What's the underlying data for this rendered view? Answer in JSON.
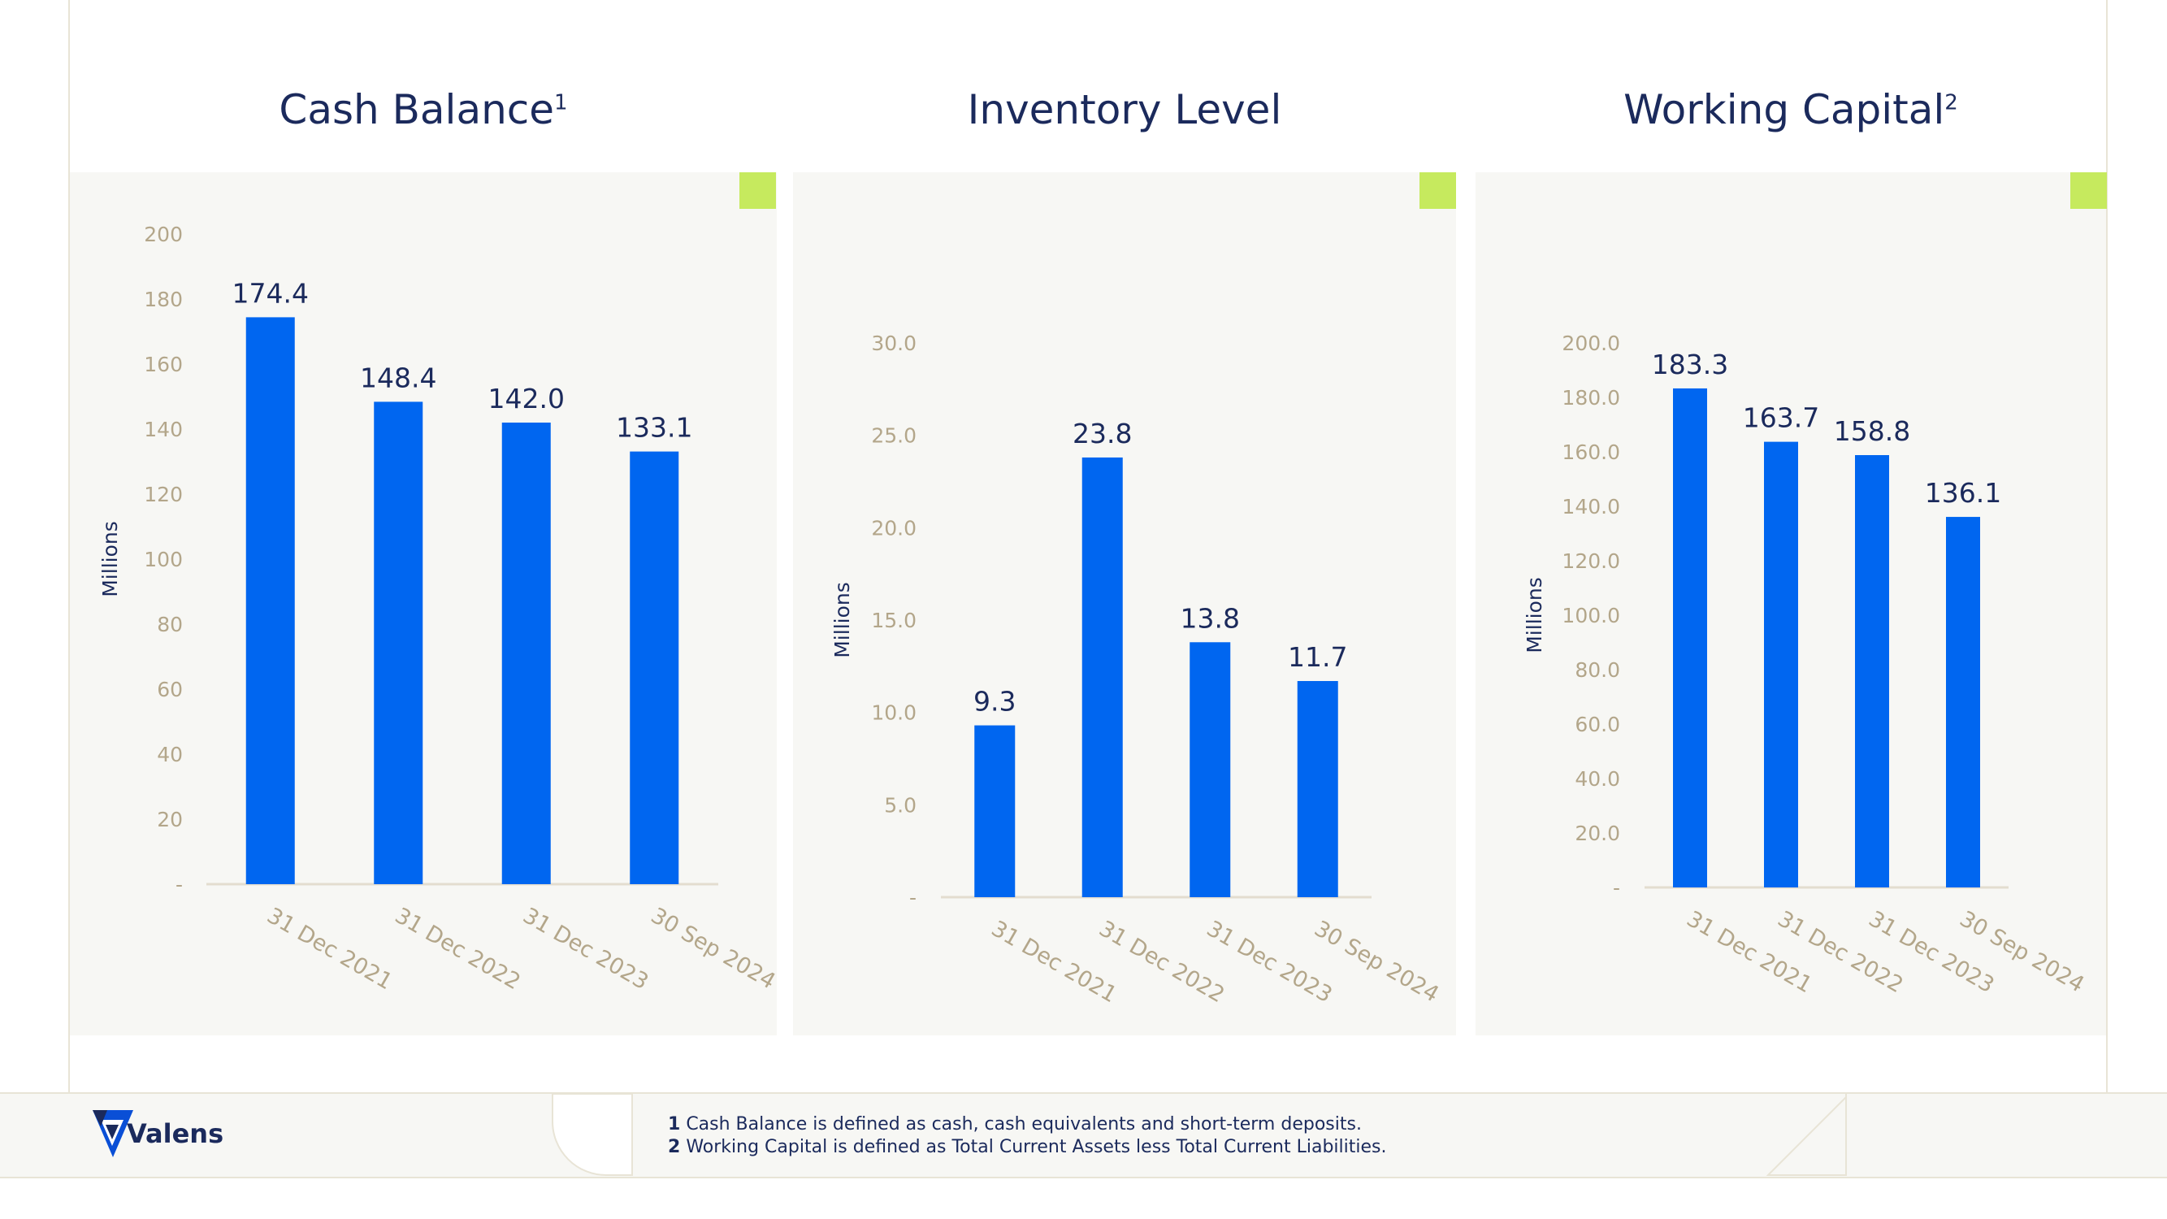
{
  "colors": {
    "bar": "#0066f0",
    "title": "#1b2a5c",
    "tick": "#b3a68a",
    "accent": "#c6ea5e",
    "panel": "#f7f7f4"
  },
  "panels": [
    {
      "title": "Cash Balance",
      "superscript": "1"
    },
    {
      "title": "Inventory Level",
      "superscript": ""
    },
    {
      "title": "Working Capital",
      "superscript": "2"
    }
  ],
  "chart_data": [
    {
      "type": "bar",
      "title": "Cash Balance",
      "ylabel": "Millions",
      "categories": [
        "31 Dec 2021",
        "31 Dec 2022",
        "31 Dec 2023",
        "30 Sep 2024"
      ],
      "values": [
        174.4,
        148.4,
        142.0,
        133.1
      ],
      "value_labels": [
        "174.4",
        "148.4",
        "142.0",
        "133.1"
      ],
      "ylim": [
        0,
        200
      ],
      "yticks": [
        0,
        20,
        40,
        60,
        80,
        100,
        120,
        140,
        160,
        180,
        200
      ],
      "ytick_labels": [
        "-",
        "20",
        "40",
        "60",
        "80",
        "100",
        "120",
        "140",
        "160",
        "180",
        "200"
      ],
      "grid": false
    },
    {
      "type": "bar",
      "title": "Inventory Level",
      "ylabel": "Millions",
      "categories": [
        "31 Dec 2021",
        "31 Dec 2022",
        "31 Dec 2023",
        "30 Sep 2024"
      ],
      "values": [
        9.3,
        23.8,
        13.8,
        11.7
      ],
      "value_labels": [
        "9.3",
        "23.8",
        "13.8",
        "11.7"
      ],
      "ylim": [
        0,
        30
      ],
      "yticks": [
        0,
        5,
        10,
        15,
        20,
        25,
        30
      ],
      "ytick_labels": [
        "-",
        "5.0",
        "10.0",
        "15.0",
        "20.0",
        "25.0",
        "30.0"
      ],
      "grid": false
    },
    {
      "type": "bar",
      "title": "Working Capital",
      "ylabel": "Millions",
      "categories": [
        "31 Dec 2021",
        "31 Dec 2022",
        "31 Dec 2023",
        "30 Sep 2024"
      ],
      "values": [
        183.3,
        163.7,
        158.8,
        136.1
      ],
      "value_labels": [
        "183.3",
        "163.7",
        "158.8",
        "136.1"
      ],
      "ylim": [
        0,
        200
      ],
      "yticks": [
        0,
        20,
        40,
        60,
        80,
        100,
        120,
        140,
        160,
        180,
        200
      ],
      "ytick_labels": [
        "-",
        "20.0",
        "40.0",
        "60.0",
        "80.0",
        "100.0",
        "120.0",
        "140.0",
        "160.0",
        "180.0",
        "200.0"
      ],
      "grid": false
    }
  ],
  "footer": {
    "logo_text": "Valens",
    "notes": [
      {
        "num": "1",
        "text": "Cash Balance is defined as cash, cash equivalents and short-term deposits."
      },
      {
        "num": "2",
        "text": "Working Capital is defined as Total Current Assets less Total Current Liabilities."
      }
    ]
  }
}
